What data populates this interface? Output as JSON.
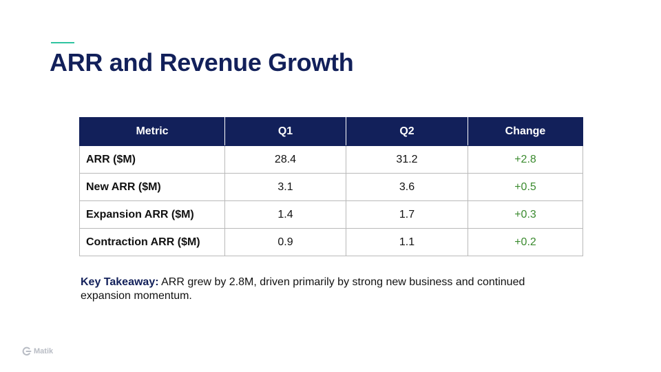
{
  "slide": {
    "title": "ARR and Revenue Growth",
    "accent_color": "#2ec4a0",
    "title_color": "#12205a"
  },
  "table": {
    "headers": [
      "Metric",
      "Q1",
      "Q2",
      "Change"
    ],
    "rows": [
      {
        "metric": "ARR ($M)",
        "q1": "28.4",
        "q2": "31.2",
        "change": "+2.8"
      },
      {
        "metric": "New ARR ($M)",
        "q1": "3.1",
        "q2": "3.6",
        "change": "+0.5"
      },
      {
        "metric": "Expansion ARR ($M)",
        "q1": "1.4",
        "q2": "1.7",
        "change": "+0.3"
      },
      {
        "metric": "Contraction ARR ($M)",
        "q1": "0.9",
        "q2": "1.1",
        "change": "+0.2"
      }
    ],
    "header_bg": "#12205a",
    "change_color": "#3a8a2e"
  },
  "takeaway": {
    "label": "Key Takeaway:",
    "text": " ARR grew by 2.8M, driven primarily by strong new business and continued expansion momentum."
  },
  "footer": {
    "logo_icon": "matik-logo-icon",
    "brand": "Matik"
  }
}
